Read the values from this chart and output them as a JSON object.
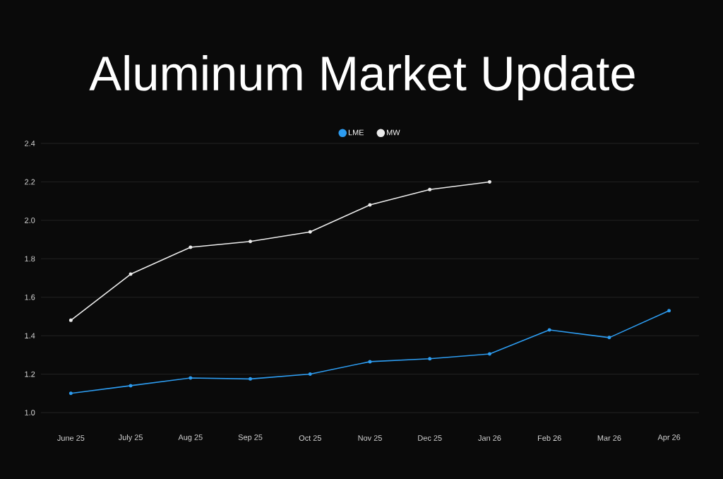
{
  "chart_data": {
    "type": "line",
    "title": "Aluminum Market Update",
    "categories": [
      "June 25",
      "July 25",
      "Aug 25",
      "Sep 25",
      "Oct 25",
      "Nov 25",
      "Dec 25",
      "Jan 26",
      "Feb 26",
      "Mar 26",
      "Apr 26"
    ],
    "series": [
      {
        "name": "LME",
        "color": "#2d9cf0",
        "values": [
          1.1,
          1.14,
          1.18,
          1.175,
          1.2,
          1.265,
          1.28,
          1.305,
          1.43,
          1.39,
          1.53
        ]
      },
      {
        "name": "MW",
        "color": "#ececec",
        "values": [
          1.48,
          1.72,
          1.86,
          1.89,
          1.94,
          2.08,
          2.16,
          2.2,
          null,
          null,
          null
        ]
      }
    ],
    "ylim": [
      1.0,
      2.4
    ],
    "yticks": [
      {
        "value": 1.0,
        "label": "1.0"
      },
      1.2,
      1.4,
      1.6,
      1.8,
      {
        "value": 2.0,
        "label": "2.0"
      },
      2.2,
      2.4
    ],
    "grid": "y",
    "legend": "top",
    "marker": "circle",
    "line_style": "solid"
  }
}
